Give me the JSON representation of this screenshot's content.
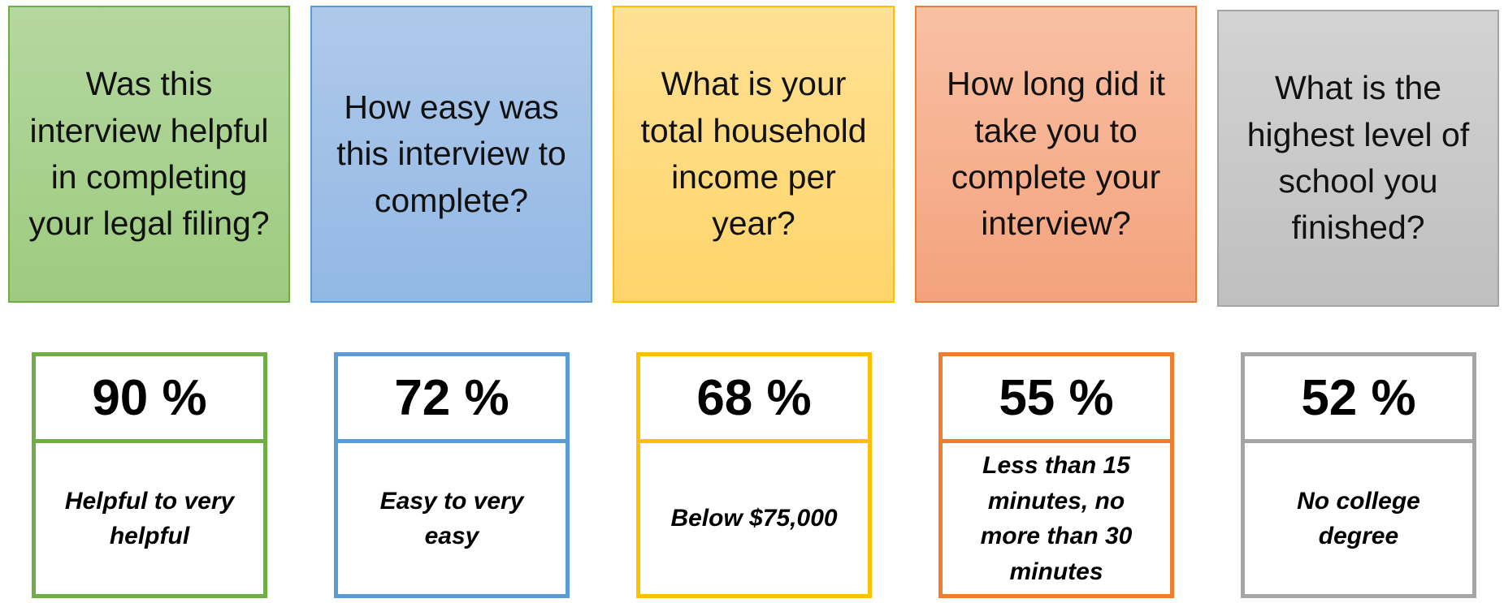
{
  "cards": [
    {
      "question": "Was this interview helpful in completing your legal filing?",
      "stat": "90 %",
      "description": "Helpful to very helpful"
    },
    {
      "question": "How easy was this interview to complete?",
      "stat": "72 %",
      "description": "Easy to very easy"
    },
    {
      "question": "What is your total household income per year?",
      "stat": "68 %",
      "description": "Below $75,000"
    },
    {
      "question": "How long did it take you to complete your interview?",
      "stat": "55 %",
      "description": "Less than 15 minutes, no more than 30 minutes"
    },
    {
      "question": "What is the highest level of school you finished?",
      "stat": "52 %",
      "description": "No college degree"
    }
  ]
}
